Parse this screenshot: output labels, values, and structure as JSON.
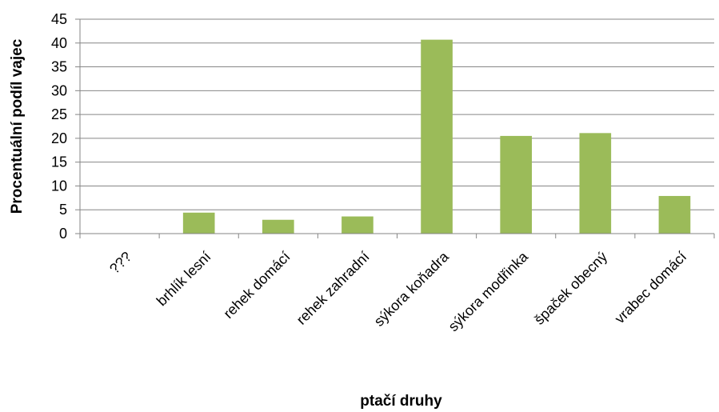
{
  "chart_data": {
    "type": "bar",
    "categories": [
      "???",
      "brhlík lesní",
      "rehek domácí",
      "rehek zahradní",
      "sýkora koňadra",
      "sýkora modřinka",
      "špaček obecný",
      "vrabec domácí"
    ],
    "values": [
      0,
      4.4,
      2.9,
      3.6,
      40.7,
      20.5,
      21.1,
      7.9
    ],
    "xlabel": "ptačí druhy",
    "ylabel": "Procentuální podíl vajec",
    "ylim": [
      0,
      45
    ],
    "yticks": [
      0,
      5,
      10,
      15,
      20,
      25,
      30,
      35,
      40,
      45
    ],
    "grid": true,
    "bar_color": "#9BBB59",
    "grid_color": "#868686"
  }
}
